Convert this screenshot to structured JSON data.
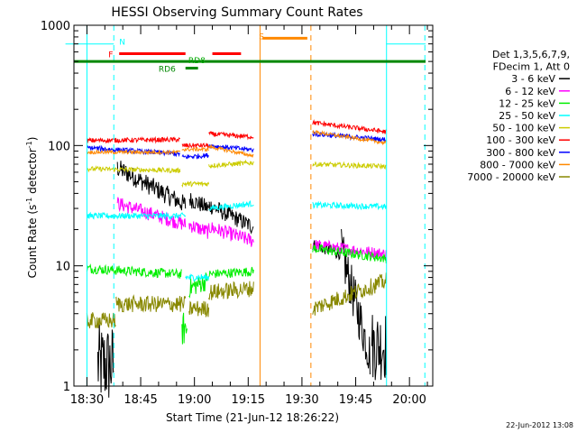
{
  "chart_data": {
    "type": "line",
    "title": "HESSI Observing Summary Count Rates",
    "xlabel": "Start Time (21-Jun-12 18:26:22)",
    "ylabel_prefix": "Count Rate (s",
    "ylabel_sup": "-1",
    "ylabel_mid": " detector",
    "ylabel_sup2": "-1",
    "ylabel_suffix": ")",
    "yscale": "log",
    "ylim": [
      1,
      1000
    ],
    "xlim_min": [
      26.37,
      126.5
    ],
    "y_ticks": [
      {
        "value": 1,
        "label": "1"
      },
      {
        "value": 10,
        "label": "10"
      },
      {
        "value": 100,
        "label": "100"
      },
      {
        "value": 1000,
        "label": "1000"
      }
    ],
    "x_ticks": [
      {
        "value": 30,
        "label": "18:30"
      },
      {
        "value": 45,
        "label": "18:45"
      },
      {
        "value": 60,
        "label": "19:00"
      },
      {
        "value": 75,
        "label": "19:15"
      },
      {
        "value": 90,
        "label": "19:30"
      },
      {
        "value": 105,
        "label": "19:45"
      },
      {
        "value": 120,
        "label": "20:00"
      }
    ],
    "legend_header": [
      "Det 1,3,5,6,7,9,",
      "FDecim 1, Att 0"
    ],
    "legend_position": "right",
    "timestamp": "22-Jun-2012 13:08",
    "series": [
      {
        "name": "3 - 6 keV",
        "color": "#000000",
        "segments": [
          {
            "t0": 33,
            "t1": 37.5,
            "y0": 1.5,
            "y1": 1.5,
            "noise": 0.35
          },
          {
            "t0": 38.5,
            "t1": 57.5,
            "y0": 65,
            "y1": 32,
            "noise": 0.08
          },
          {
            "t0": 58.5,
            "t1": 64,
            "y0": 36,
            "y1": 30,
            "noise": 0.07
          },
          {
            "t0": 64,
            "t1": 76.5,
            "y0": 32,
            "y1": 21,
            "noise": 0.07
          },
          {
            "t0": 93,
            "t1": 101,
            "y0": 15,
            "y1": 12.5,
            "noise": 0.05
          },
          {
            "t0": 101,
            "t1": 109,
            "y0": 13,
            "y1": 1.8,
            "noise": 0.2
          },
          {
            "t0": 109.5,
            "t1": 113.5,
            "y0": 2.2,
            "y1": 2.2,
            "noise": 0.3
          }
        ]
      },
      {
        "name": "6 - 12 keV",
        "color": "#ff00ff",
        "segments": [
          {
            "t0": 38.5,
            "t1": 57.5,
            "y0": 33,
            "y1": 22,
            "noise": 0.06
          },
          {
            "t0": 58.5,
            "t1": 64,
            "y0": 22,
            "y1": 19,
            "noise": 0.06
          },
          {
            "t0": 64,
            "t1": 76.5,
            "y0": 21,
            "y1": 16,
            "noise": 0.06
          },
          {
            "t0": 93,
            "t1": 113.5,
            "y0": 15,
            "y1": 12.5,
            "noise": 0.05
          }
        ]
      },
      {
        "name": "12 - 25 keV",
        "color": "#00ee00",
        "segments": [
          {
            "t0": 30,
            "t1": 56.5,
            "y0": 9.5,
            "y1": 8.5,
            "noise": 0.04
          },
          {
            "t0": 56.5,
            "t1": 58,
            "y0": 3,
            "y1": 3,
            "noise": 0.15
          },
          {
            "t0": 58.5,
            "t1": 63.5,
            "y0": 6.5,
            "y1": 7.5,
            "noise": 0.08
          },
          {
            "t0": 64,
            "t1": 76.5,
            "y0": 8.5,
            "y1": 9,
            "noise": 0.04
          },
          {
            "t0": 93,
            "t1": 113.5,
            "y0": 14,
            "y1": 11.5,
            "noise": 0.04
          }
        ]
      },
      {
        "name": "25 - 50 keV",
        "color": "#00ffff",
        "segments": [
          {
            "t0": 24,
            "t1": 37.5,
            "y0": 700,
            "y1": 700,
            "noise": 0
          },
          {
            "t0": 30,
            "t1": 57.5,
            "y0": 26,
            "y1": 26,
            "noise": 0.025
          },
          {
            "t0": 57.5,
            "t1": 64,
            "y0": 8,
            "y1": 8,
            "noise": 0.03
          },
          {
            "t0": 64,
            "t1": 76.5,
            "y0": 30,
            "y1": 33,
            "noise": 0.025
          },
          {
            "t0": 93,
            "t1": 113.5,
            "y0": 32,
            "y1": 31,
            "noise": 0.025
          },
          {
            "t0": 113.5,
            "t1": 124.5,
            "y0": 700,
            "y1": 700,
            "noise": 0
          }
        ]
      },
      {
        "name": "50 - 100 keV",
        "color": "#cccc00",
        "segments": [
          {
            "t0": 30,
            "t1": 56,
            "y0": 64,
            "y1": 62,
            "noise": 0.02
          },
          {
            "t0": 56.5,
            "t1": 64,
            "y0": 48,
            "y1": 48,
            "noise": 0.02
          },
          {
            "t0": 64,
            "t1": 76.5,
            "y0": 68,
            "y1": 72,
            "noise": 0.02
          },
          {
            "t0": 93,
            "t1": 113.5,
            "y0": 70,
            "y1": 67,
            "noise": 0.02
          }
        ]
      },
      {
        "name": "100 - 300 keV",
        "color": "#ff0000",
        "segments": [
          {
            "t0": 30,
            "t1": 56,
            "y0": 110,
            "y1": 112,
            "noise": 0.02
          },
          {
            "t0": 56.5,
            "t1": 64,
            "y0": 100,
            "y1": 100,
            "noise": 0.02
          },
          {
            "t0": 64,
            "t1": 76.5,
            "y0": 125,
            "y1": 118,
            "noise": 0.02
          },
          {
            "t0": 93,
            "t1": 113.5,
            "y0": 155,
            "y1": 130,
            "noise": 0.02
          }
        ]
      },
      {
        "name": "300 - 800 keV",
        "color": "#0000ff",
        "segments": [
          {
            "t0": 30,
            "t1": 56,
            "y0": 96,
            "y1": 85,
            "noise": 0.02
          },
          {
            "t0": 56.5,
            "t1": 64,
            "y0": 80,
            "y1": 83,
            "noise": 0.02
          },
          {
            "t0": 64,
            "t1": 76.5,
            "y0": 100,
            "y1": 92,
            "noise": 0.02
          },
          {
            "t0": 93,
            "t1": 113.5,
            "y0": 125,
            "y1": 112,
            "noise": 0.02
          }
        ]
      },
      {
        "name": "800 - 7000 keV",
        "color": "#ff8800",
        "segments": [
          {
            "t0": 30,
            "t1": 56,
            "y0": 88,
            "y1": 88,
            "noise": 0.015
          },
          {
            "t0": 56.5,
            "t1": 64,
            "y0": 93,
            "y1": 93,
            "noise": 0.015
          },
          {
            "t0": 64,
            "t1": 76.5,
            "y0": 98,
            "y1": 82,
            "noise": 0.015
          },
          {
            "t0": 93,
            "t1": 113.5,
            "y0": 130,
            "y1": 105,
            "noise": 0.015
          }
        ]
      },
      {
        "name": "7000 - 20000 keV",
        "color": "#888800",
        "segments": [
          {
            "t0": 30,
            "t1": 38,
            "y0": 3.5,
            "y1": 3.5,
            "noise": 0.07
          },
          {
            "t0": 38,
            "t1": 57.5,
            "y0": 4.8,
            "y1": 4.8,
            "noise": 0.07
          },
          {
            "t0": 58.5,
            "t1": 64,
            "y0": 4.4,
            "y1": 4.4,
            "noise": 0.07
          },
          {
            "t0": 64,
            "t1": 76.5,
            "y0": 6,
            "y1": 6.5,
            "noise": 0.07
          },
          {
            "t0": 93,
            "t1": 113.5,
            "y0": 4.4,
            "y1": 7.5,
            "noise": 0.07
          }
        ]
      }
    ],
    "flags": [
      {
        "label": "N",
        "color": "#00ffff",
        "t0": 38,
        "t1": 38,
        "y": 700,
        "label_t": 39,
        "label_y": 740
      },
      {
        "label": "F",
        "color": "#ff0000",
        "t0": 39,
        "t1": 57.5,
        "y": 580,
        "label_t": 36,
        "label_y": 580
      },
      {
        "label": "",
        "color": "#ff0000",
        "t0": 65,
        "t1": 73,
        "y": 580,
        "label_t": 0,
        "label_y": 0
      },
      {
        "label": "RD8",
        "color": "#00aa00",
        "t0": 0,
        "t1": 0,
        "y": 0,
        "label_t": 58.3,
        "label_y": 520
      },
      {
        "label": "RD6",
        "color": "#008800",
        "t0": 57.5,
        "t1": 61,
        "y": 440,
        "label_t": 50,
        "label_y": 440
      },
      {
        "label": "S",
        "color": "#ff8800",
        "t0": 79,
        "t1": 91.5,
        "y": 780,
        "label_t": 78,
        "label_y": 820
      }
    ],
    "saa_line": {
      "color": "#008800",
      "value": 500,
      "t0": 26.37,
      "t1": 124.5
    },
    "vlines": [
      {
        "t": 30,
        "color": "#00ffff",
        "style": "solid"
      },
      {
        "t": 37.5,
        "color": "#00ffff",
        "style": "dash"
      },
      {
        "t": 78.3,
        "color": "#ff8800",
        "style": "solid"
      },
      {
        "t": 92.5,
        "color": "#ff8800",
        "style": "dash"
      },
      {
        "t": 113.6,
        "color": "#00ffff",
        "style": "solid"
      },
      {
        "t": 124.3,
        "color": "#00ffff",
        "style": "dash"
      }
    ]
  }
}
